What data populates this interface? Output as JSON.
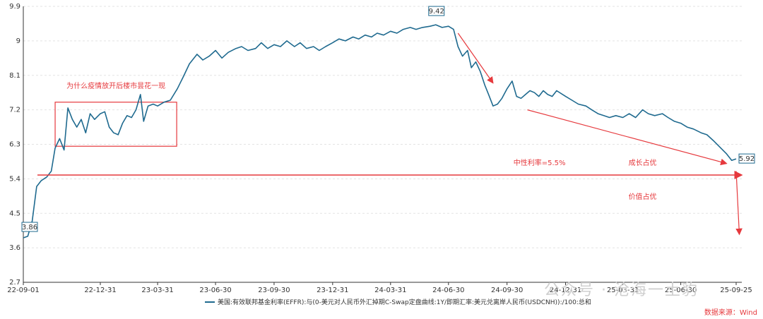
{
  "chart_data": {
    "type": "line",
    "title": "",
    "xlabel": "",
    "ylabel": "",
    "ylim": [
      2.7,
      9.9
    ],
    "yticks": [
      "2.7",
      "3.6",
      "4.5",
      "5.4",
      "6.3",
      "7.2",
      "8.1",
      "9",
      "9.9"
    ],
    "xticks": [
      "22-09-01",
      "22-12-31",
      "23-03-31",
      "23-06-30",
      "23-09-30",
      "23-12-31",
      "24-03-31",
      "24-06-30",
      "24-09-30",
      "24-12-31",
      "25-03-31",
      "25-06-30",
      "25-09-25"
    ],
    "grid": true,
    "legend_position": "bottom-center",
    "series": [
      {
        "name": "美国:有效联邦基金利率(EFFR):与(0-美元对人民币外汇掉期C-Swap定盘曲线:1Y/即期汇率:美元兑离岸人民币(USDCNH)):/100:总和",
        "color": "#1f6a8f",
        "points": [
          [
            "22-09-01",
            3.86
          ],
          [
            "22-09-08",
            3.9
          ],
          [
            "22-09-15",
            4.3
          ],
          [
            "22-09-22",
            5.2
          ],
          [
            "22-09-29",
            5.35
          ],
          [
            "22-10-08",
            5.45
          ],
          [
            "22-10-15",
            5.6
          ],
          [
            "22-10-21",
            6.2
          ],
          [
            "22-10-28",
            6.45
          ],
          [
            "22-11-04",
            6.15
          ],
          [
            "22-11-10",
            7.25
          ],
          [
            "22-11-17",
            6.95
          ],
          [
            "22-11-24",
            6.75
          ],
          [
            "22-12-01",
            6.95
          ],
          [
            "22-12-08",
            6.6
          ],
          [
            "22-12-15",
            7.1
          ],
          [
            "22-12-22",
            6.95
          ],
          [
            "22-12-31",
            7.1
          ],
          [
            "23-01-07",
            7.15
          ],
          [
            "23-01-14",
            6.75
          ],
          [
            "23-01-21",
            6.6
          ],
          [
            "23-01-28",
            6.55
          ],
          [
            "23-02-04",
            6.85
          ],
          [
            "23-02-11",
            7.05
          ],
          [
            "23-02-18",
            7.0
          ],
          [
            "23-02-25",
            7.2
          ],
          [
            "23-03-04",
            7.6
          ],
          [
            "23-03-09",
            6.9
          ],
          [
            "23-03-16",
            7.3
          ],
          [
            "23-03-24",
            7.35
          ],
          [
            "23-03-31",
            7.3
          ],
          [
            "23-04-10",
            7.4
          ],
          [
            "23-04-20",
            7.45
          ],
          [
            "23-05-01",
            7.75
          ],
          [
            "23-05-10",
            8.05
          ],
          [
            "23-05-20",
            8.4
          ],
          [
            "23-06-01",
            8.65
          ],
          [
            "23-06-10",
            8.5
          ],
          [
            "23-06-20",
            8.6
          ],
          [
            "23-06-30",
            8.75
          ],
          [
            "23-07-10",
            8.55
          ],
          [
            "23-07-20",
            8.7
          ],
          [
            "23-08-01",
            8.8
          ],
          [
            "23-08-10",
            8.85
          ],
          [
            "23-08-20",
            8.75
          ],
          [
            "23-09-01",
            8.8
          ],
          [
            "23-09-10",
            8.95
          ],
          [
            "23-09-20",
            8.8
          ],
          [
            "23-09-30",
            8.9
          ],
          [
            "23-10-10",
            8.85
          ],
          [
            "23-10-20",
            9.0
          ],
          [
            "23-11-01",
            8.85
          ],
          [
            "23-11-10",
            8.95
          ],
          [
            "23-11-20",
            8.8
          ],
          [
            "23-12-01",
            8.85
          ],
          [
            "23-12-10",
            8.75
          ],
          [
            "23-12-20",
            8.85
          ],
          [
            "23-12-31",
            8.95
          ],
          [
            "24-01-10",
            9.05
          ],
          [
            "24-01-20",
            9.0
          ],
          [
            "24-02-01",
            9.1
          ],
          [
            "24-02-10",
            9.05
          ],
          [
            "24-02-20",
            9.15
          ],
          [
            "24-03-01",
            9.1
          ],
          [
            "24-03-10",
            9.2
          ],
          [
            "24-03-20",
            9.15
          ],
          [
            "24-03-31",
            9.25
          ],
          [
            "24-04-10",
            9.2
          ],
          [
            "24-04-20",
            9.3
          ],
          [
            "24-05-01",
            9.35
          ],
          [
            "24-05-10",
            9.3
          ],
          [
            "24-05-20",
            9.35
          ],
          [
            "24-06-01",
            9.38
          ],
          [
            "24-06-10",
            9.42
          ],
          [
            "24-06-20",
            9.35
          ],
          [
            "24-06-30",
            9.38
          ],
          [
            "24-07-08",
            9.3
          ],
          [
            "24-07-15",
            8.85
          ],
          [
            "24-07-22",
            8.6
          ],
          [
            "24-07-30",
            8.75
          ],
          [
            "24-08-05",
            8.3
          ],
          [
            "24-08-12",
            8.45
          ],
          [
            "24-08-19",
            8.2
          ],
          [
            "24-08-26",
            7.85
          ],
          [
            "24-09-01",
            7.6
          ],
          [
            "24-09-08",
            7.3
          ],
          [
            "24-09-15",
            7.35
          ],
          [
            "24-09-22",
            7.5
          ],
          [
            "24-09-30",
            7.75
          ],
          [
            "24-10-08",
            7.95
          ],
          [
            "24-10-15",
            7.55
          ],
          [
            "24-10-22",
            7.5
          ],
          [
            "24-10-29",
            7.6
          ],
          [
            "24-11-05",
            7.7
          ],
          [
            "24-11-12",
            7.65
          ],
          [
            "24-11-19",
            7.55
          ],
          [
            "24-11-26",
            7.7
          ],
          [
            "24-12-03",
            7.6
          ],
          [
            "24-12-10",
            7.55
          ],
          [
            "24-12-17",
            7.7
          ],
          [
            "24-12-31",
            7.55
          ],
          [
            "25-01-10",
            7.45
          ],
          [
            "25-01-20",
            7.35
          ],
          [
            "25-02-01",
            7.3
          ],
          [
            "25-02-10",
            7.2
          ],
          [
            "25-02-20",
            7.1
          ],
          [
            "25-03-01",
            7.05
          ],
          [
            "25-03-10",
            7.0
          ],
          [
            "25-03-20",
            7.05
          ],
          [
            "25-03-31",
            7.0
          ],
          [
            "25-04-10",
            7.1
          ],
          [
            "25-04-20",
            7.0
          ],
          [
            "25-05-01",
            7.2
          ],
          [
            "25-05-10",
            7.1
          ],
          [
            "25-05-20",
            7.05
          ],
          [
            "25-06-01",
            7.1
          ],
          [
            "25-06-10",
            7.0
          ],
          [
            "25-06-20",
            6.9
          ],
          [
            "25-06-30",
            6.85
          ],
          [
            "25-07-10",
            6.75
          ],
          [
            "25-07-20",
            6.7
          ],
          [
            "25-08-01",
            6.6
          ],
          [
            "25-08-10",
            6.55
          ],
          [
            "25-08-20",
            6.4
          ],
          [
            "25-09-01",
            6.2
          ],
          [
            "25-09-10",
            6.05
          ],
          [
            "25-09-18",
            5.88
          ],
          [
            "25-09-25",
            5.92
          ]
        ]
      }
    ],
    "value_labels": [
      {
        "date": "22-09-01",
        "value": 3.86,
        "text": "3.86"
      },
      {
        "date": "24-06-10",
        "value": 9.42,
        "text": "9.42"
      },
      {
        "date": "25-09-25",
        "value": 5.92,
        "text": "5.92"
      }
    ],
    "annotations": {
      "box_title": "为什么疫情放开后楼市昙花一现",
      "box_range": {
        "x_start": "22-10-21",
        "x_end": "23-04-30",
        "y_low": 6.25,
        "y_high": 7.4
      },
      "neutral_rate_label": "中性利率=5.5%",
      "neutral_rate_value": 5.5,
      "growth_label": "成长占优",
      "value_label": "价值占优",
      "arrows": [
        {
          "from": [
            "24-07-15",
            9.2
          ],
          "to": [
            "24-09-08",
            7.9
          ]
        },
        {
          "from": [
            "24-11-01",
            7.2
          ],
          "to": [
            "25-09-10",
            5.8
          ]
        },
        {
          "from": [
            "25-09-25",
            5.6
          ],
          "to": [
            "25-09-30",
            3.95
          ]
        }
      ]
    },
    "source": "数据来源：Wind",
    "watermark": "公众号 · 沧海一土豹"
  }
}
